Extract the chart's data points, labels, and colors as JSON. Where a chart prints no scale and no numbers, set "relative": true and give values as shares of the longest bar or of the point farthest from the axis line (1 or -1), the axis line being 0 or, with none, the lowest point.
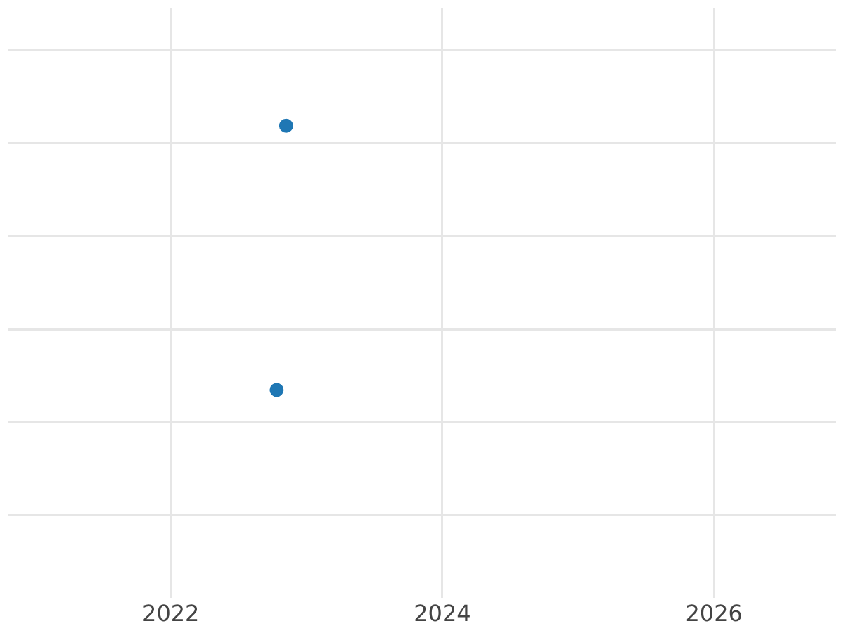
{
  "chart_data": {
    "type": "scatter",
    "relative": true,
    "x": [
      2022.78,
      2022.85
    ],
    "values": [
      0.44,
      1
    ],
    "color": "#1f77b4",
    "xlim": [
      2020.8,
      2026.9
    ],
    "xticks": [
      2022,
      2024,
      2026
    ],
    "grid": true,
    "marker": "circle"
  }
}
